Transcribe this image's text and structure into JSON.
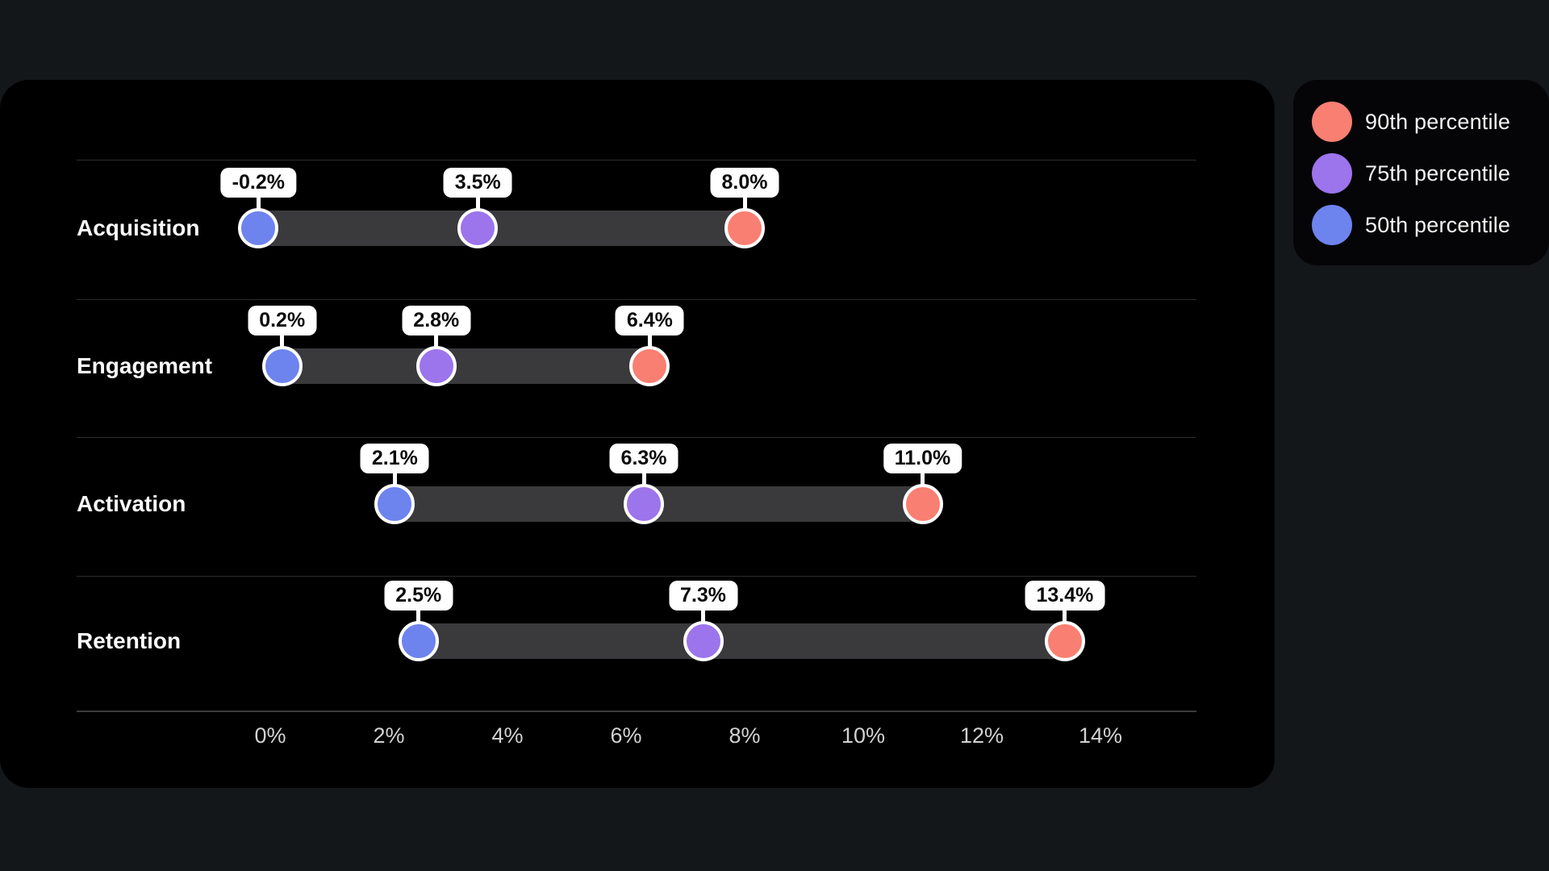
{
  "colors": {
    "page_bg": "#14171a",
    "card_bg": "#000000",
    "bar": "#3a3a3c",
    "separator": "#2c2c2e",
    "axis_line": "#3c3c3e",
    "tick_text": "#d2d2d2",
    "row_label_text": "#fafafa",
    "pill_bg": "#ffffff",
    "pill_text": "#0a0a0a",
    "p90": "#f97f72",
    "p75": "#9c74ec",
    "p50": "#6d83ee"
  },
  "legend": {
    "items": [
      {
        "id": "p90",
        "label": "90th percentile",
        "color": "#f97f72"
      },
      {
        "id": "p75",
        "label": "75th percentile",
        "color": "#9c74ec"
      },
      {
        "id": "p50",
        "label": "50th percentile",
        "color": "#6d83ee"
      }
    ]
  },
  "chart_data": {
    "type": "dumbbell",
    "title": "",
    "categories": [
      "Acquisition",
      "Engagement",
      "Activation",
      "Retention"
    ],
    "series": [
      {
        "id": "p50",
        "name": "50th percentile",
        "color": "#6d83ee",
        "values": [
          -0.2,
          0.2,
          2.1,
          2.5
        ],
        "labels": [
          "-0.2%",
          "0.2%",
          "2.1%",
          "2.5%"
        ]
      },
      {
        "id": "p75",
        "name": "75th percentile",
        "color": "#9c74ec",
        "values": [
          3.5,
          2.8,
          6.3,
          7.3
        ],
        "labels": [
          "3.5%",
          "2.8%",
          "6.3%",
          "7.3%"
        ]
      },
      {
        "id": "p90",
        "name": "90th percentile",
        "color": "#f97f72",
        "values": [
          8.0,
          6.4,
          11.0,
          13.4
        ],
        "labels": [
          "8.0%",
          "6.4%",
          "11.0%",
          "13.4%"
        ]
      }
    ],
    "x_axis": {
      "tick_labels": [
        "0%",
        "2%",
        "4%",
        "6%",
        "8%",
        "10%",
        "12%",
        "14%"
      ],
      "tick_values": [
        0,
        2,
        4,
        6,
        8,
        10,
        12,
        14
      ],
      "min": -3.2,
      "max": 15.7,
      "unit": "%"
    },
    "grid": "row-separators",
    "legend_position": "top-right"
  }
}
